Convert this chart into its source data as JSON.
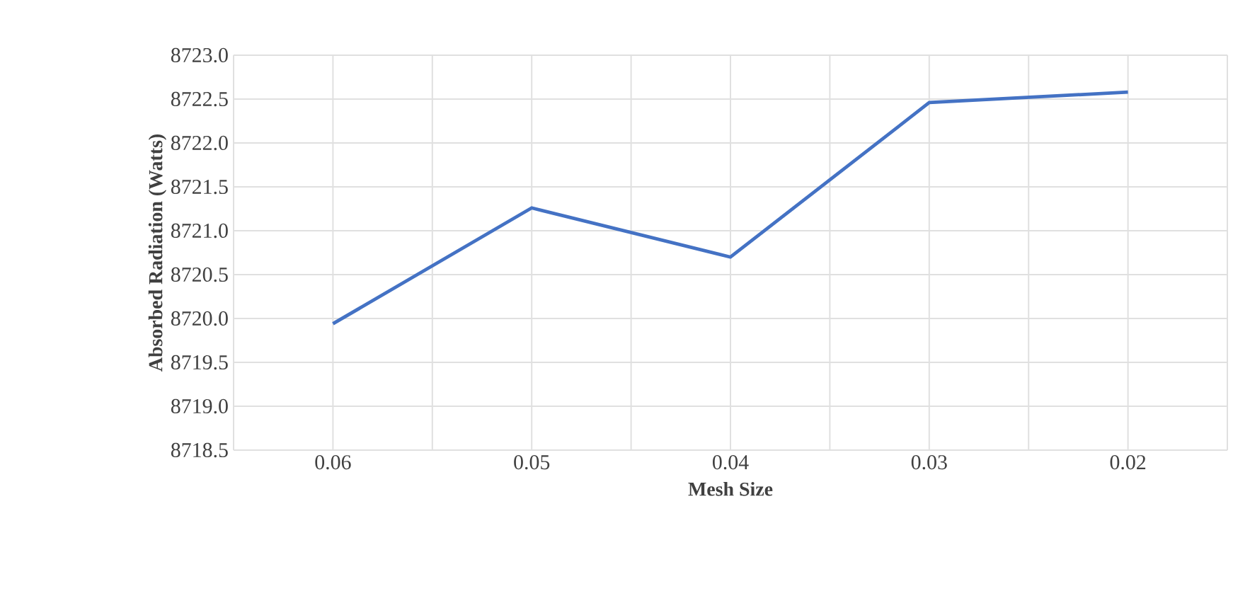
{
  "chart_data": {
    "type": "line",
    "xlabel": "Mesh Size",
    "ylabel": "Absorbed Radiation (Watts)",
    "categories": [
      "0.06",
      "0.05",
      "0.04",
      "0.03",
      "0.02"
    ],
    "series": [
      {
        "color": "#4472c4",
        "values": [
          8719.94,
          8721.26,
          8720.7,
          8722.46,
          8722.58
        ]
      }
    ],
    "ylim": [
      8718.5,
      8723.0
    ],
    "yticks": [
      8718.5,
      {
        "value": 8719,
        "label": "8719.0"
      },
      8719.5,
      {
        "value": 8720,
        "label": "8720.0"
      },
      8720.5,
      {
        "value": 8721,
        "label": "8721.0"
      },
      8721.5,
      {
        "value": 8722,
        "label": "8722.0"
      },
      8722.5,
      {
        "value": 8723,
        "label": "8723.0"
      }
    ],
    "grid": true
  }
}
